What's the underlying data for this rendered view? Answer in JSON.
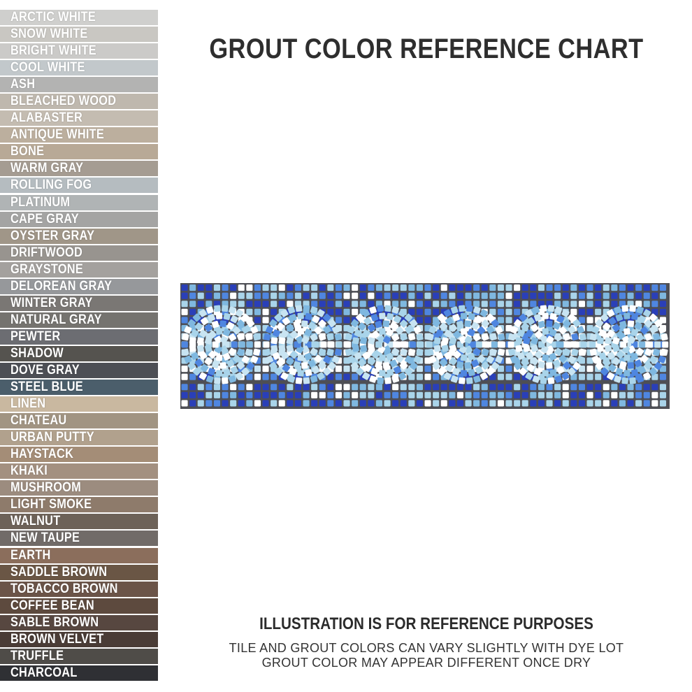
{
  "title": "GROUT COLOR REFERENCE CHART",
  "swatches": [
    {
      "label": "ARCTIC WHITE",
      "color": "#cfcfcd"
    },
    {
      "label": "SNOW WHITE",
      "color": "#c9c7c2"
    },
    {
      "label": "BRIGHT WHITE",
      "color": "#cbcac8"
    },
    {
      "label": "COOL WHITE",
      "color": "#c2c8cb"
    },
    {
      "label": "ASH",
      "color": "#b3b3b2"
    },
    {
      "label": "BLEACHED WOOD",
      "color": "#bfb8ae"
    },
    {
      "label": "ALABASTER",
      "color": "#c4bcb1"
    },
    {
      "label": "ANTIQUE WHITE",
      "color": "#bcaf9e"
    },
    {
      "label": "BONE",
      "color": "#b8a996"
    },
    {
      "label": "WARM GRAY",
      "color": "#a59c92"
    },
    {
      "label": "ROLLING FOG",
      "color": "#b5bcc0"
    },
    {
      "label": "PLATINUM",
      "color": "#b0b4b5"
    },
    {
      "label": "CAPE GRAY",
      "color": "#a4a4a3"
    },
    {
      "label": "OYSTER GRAY",
      "color": "#a09688"
    },
    {
      "label": "DRIFTWOOD",
      "color": "#98948f"
    },
    {
      "label": "GRAYSTONE",
      "color": "#a4a19e"
    },
    {
      "label": "DELOREAN GRAY",
      "color": "#96989b"
    },
    {
      "label": "WINTER GRAY",
      "color": "#7a7774"
    },
    {
      "label": "NATURAL GRAY",
      "color": "#75736f"
    },
    {
      "label": "PEWTER",
      "color": "#6c6d72"
    },
    {
      "label": "SHADOW",
      "color": "#55534f"
    },
    {
      "label": "DOVE GRAY",
      "color": "#4d4f55"
    },
    {
      "label": "STEEL BLUE",
      "color": "#4b5e6b"
    },
    {
      "label": "LINEN",
      "color": "#c9b8a0"
    },
    {
      "label": "CHATEAU",
      "color": "#a19482"
    },
    {
      "label": "URBAN PUTTY",
      "color": "#b1a18d"
    },
    {
      "label": "HAYSTACK",
      "color": "#a48d77"
    },
    {
      "label": "KHAKI",
      "color": "#a39080"
    },
    {
      "label": "MUSHROOM",
      "color": "#9c8c7f"
    },
    {
      "label": "LIGHT SMOKE",
      "color": "#8e7b6b"
    },
    {
      "label": "WALNUT",
      "color": "#6d6258"
    },
    {
      "label": "NEW TAUPE",
      "color": "#716b68"
    },
    {
      "label": "EARTH",
      "color": "#8b6e5c"
    },
    {
      "label": "SADDLE BROWN",
      "color": "#6a5645"
    },
    {
      "label": "TOBACCO BROWN",
      "color": "#6b5448"
    },
    {
      "label": "COFFEE BEAN",
      "color": "#5d4a3e"
    },
    {
      "label": "SABLE BROWN",
      "color": "#574740"
    },
    {
      "label": "BROWN VELVET",
      "color": "#4a3c36"
    },
    {
      "label": "TRUFFLE",
      "color": "#4f4c48"
    },
    {
      "label": "CHARCOAL",
      "color": "#2f3034"
    }
  ],
  "mosaic": {
    "grout_color": "#4e4f55",
    "tile_colors": [
      "#ffffff",
      "#a9d4ea",
      "#7fb8e0",
      "#4f86e0",
      "#2a3fb8",
      "#c8e4f2"
    ]
  },
  "footer": {
    "heading": "ILLUSTRATION IS FOR REFERENCE PURPOSES",
    "line1": "TILE AND GROUT COLORS CAN VARY SLIGHTLY WITH DYE LOT",
    "line2": "GROUT COLOR MAY APPEAR DIFFERENT ONCE DRY"
  }
}
